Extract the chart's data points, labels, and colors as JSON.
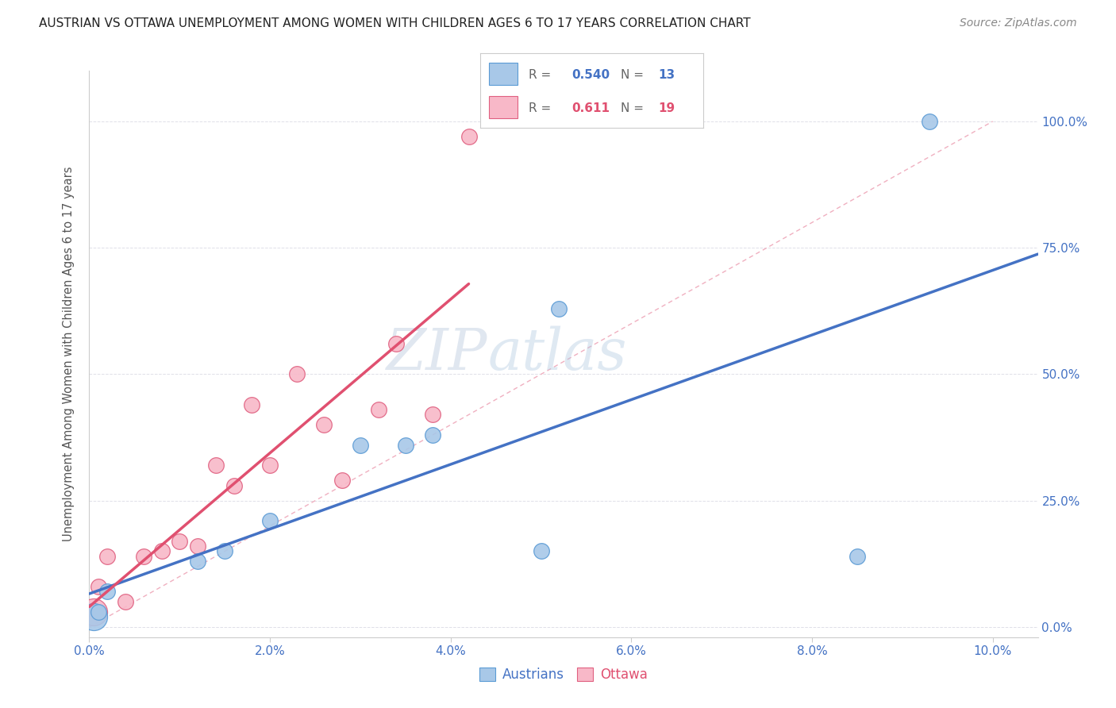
{
  "title": "AUSTRIAN VS OTTAWA UNEMPLOYMENT AMONG WOMEN WITH CHILDREN AGES 6 TO 17 YEARS CORRELATION CHART",
  "source": "Source: ZipAtlas.com",
  "xlabel_ticks": [
    "0.0%",
    "2.0%",
    "4.0%",
    "6.0%",
    "8.0%",
    "10.0%"
  ],
  "xlabel_vals": [
    0.0,
    0.02,
    0.04,
    0.06,
    0.08,
    0.1
  ],
  "ylabel_ticks": [
    "0.0%",
    "25.0%",
    "50.0%",
    "75.0%",
    "100.0%"
  ],
  "ylabel_vals": [
    0.0,
    0.25,
    0.5,
    0.75,
    1.0
  ],
  "ylabel_label": "Unemployment Among Women with Children Ages 6 to 17 years",
  "austrians_x": [
    0.0005,
    0.001,
    0.002,
    0.012,
    0.015,
    0.02,
    0.03,
    0.035,
    0.05,
    0.052,
    0.038,
    0.085,
    0.093
  ],
  "austrians_y": [
    0.02,
    0.03,
    0.07,
    0.13,
    0.15,
    0.21,
    0.36,
    0.36,
    0.15,
    0.63,
    0.38,
    0.14,
    1.0
  ],
  "austrians_size": [
    600,
    200,
    200,
    200,
    200,
    200,
    200,
    200,
    200,
    200,
    200,
    200,
    200
  ],
  "ottawa_x": [
    0.0005,
    0.001,
    0.002,
    0.004,
    0.006,
    0.008,
    0.01,
    0.012,
    0.014,
    0.016,
    0.018,
    0.02,
    0.023,
    0.026,
    0.028,
    0.032,
    0.034,
    0.038,
    0.042
  ],
  "ottawa_y": [
    0.03,
    0.08,
    0.14,
    0.05,
    0.14,
    0.15,
    0.17,
    0.16,
    0.32,
    0.28,
    0.44,
    0.32,
    0.5,
    0.4,
    0.29,
    0.43,
    0.56,
    0.42,
    0.97
  ],
  "ottawa_size": [
    600,
    200,
    200,
    200,
    200,
    200,
    200,
    200,
    200,
    200,
    200,
    200,
    200,
    200,
    200,
    200,
    200,
    200,
    200
  ],
  "austrians_color": "#A8C8E8",
  "ottawa_color": "#F8B8C8",
  "austrians_edge_color": "#5B9BD5",
  "ottawa_edge_color": "#E06080",
  "austrians_trendline_color": "#4472C4",
  "ottawa_trendline_color": "#E05070",
  "diagonal_color": "#F0B0C0",
  "R_austrians": 0.54,
  "N_austrians": 13,
  "R_ottawa": 0.611,
  "N_ottawa": 19,
  "legend_austrians": "Austrians",
  "legend_ottawa": "Ottawa",
  "watermark_zip": "ZIP",
  "watermark_atlas": "atlas",
  "background_color": "#FFFFFF",
  "xlim": [
    0.0,
    0.105
  ],
  "ylim": [
    -0.02,
    1.1
  ],
  "grid_color": "#E0E0E8",
  "title_fontsize": 11,
  "source_fontsize": 10
}
